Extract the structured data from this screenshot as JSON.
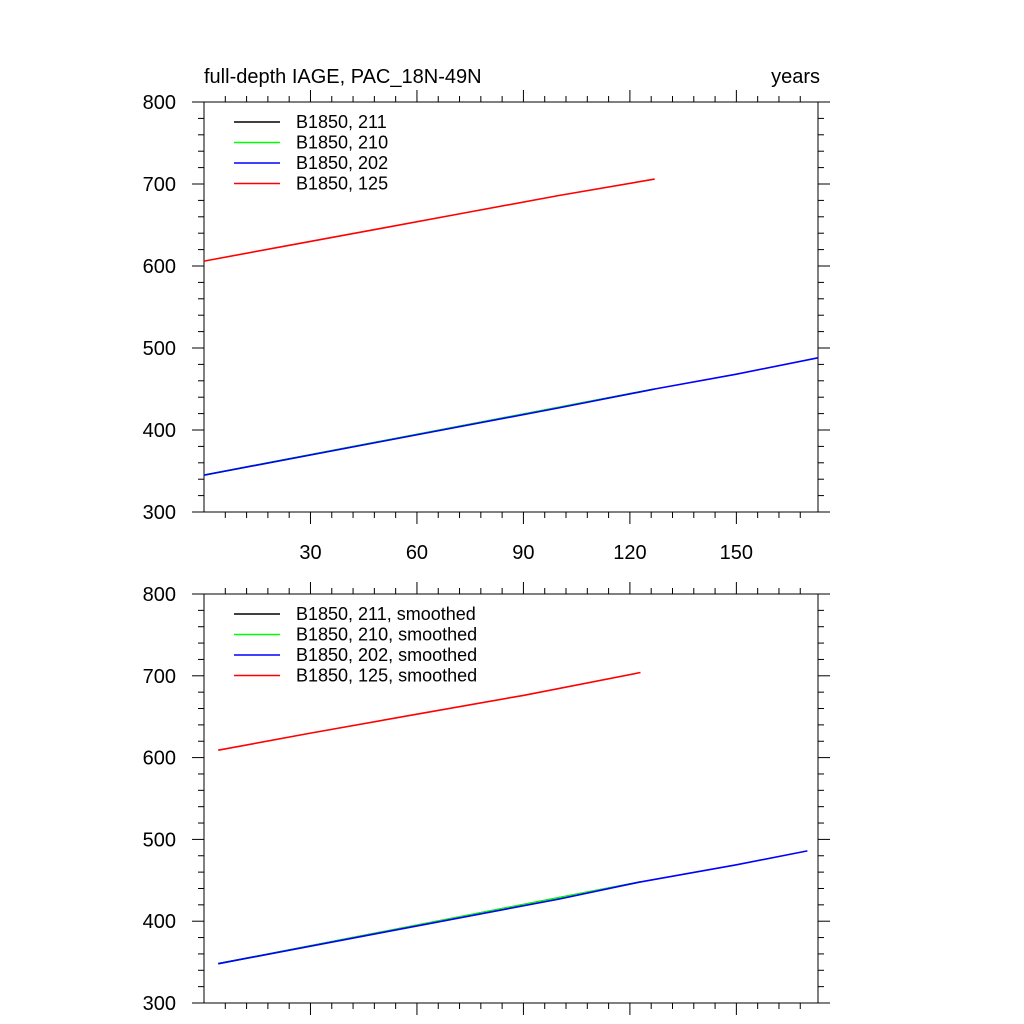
{
  "chart_data": [
    {
      "type": "line",
      "title_left": "full-depth IAGE, PAC_18N-49N",
      "title_right": "years",
      "xlabel": "",
      "ylabel": "",
      "xlim": [
        0,
        173
      ],
      "ylim": [
        300,
        800
      ],
      "x_ticks": [
        30,
        60,
        90,
        120,
        150
      ],
      "x_tick_labels": [
        "30",
        "60",
        "90",
        "120",
        "150"
      ],
      "y_ticks": [
        300,
        400,
        500,
        600,
        700,
        800
      ],
      "y_tick_labels": [
        "300",
        "400",
        "500",
        "600",
        "700",
        "800"
      ],
      "legend_position": "top-left",
      "series": [
        {
          "name": "B1850, 211",
          "color": "#000000",
          "x": [
            0,
            127
          ],
          "y": [
            345,
            450
          ]
        },
        {
          "name": "B1850, 210",
          "color": "#00ff00",
          "x": [
            0,
            127
          ],
          "y": [
            345,
            450
          ]
        },
        {
          "name": "B1850, 202",
          "color": "#0000ff",
          "x": [
            0,
            50,
            100,
            127,
            150,
            173
          ],
          "y": [
            345,
            386,
            427,
            450,
            468,
            488
          ]
        },
        {
          "name": "B1850, 125",
          "color": "#ff0000",
          "x": [
            0,
            25,
            50,
            75,
            100,
            127
          ],
          "y": [
            606,
            626,
            646,
            666,
            686,
            706
          ]
        }
      ]
    },
    {
      "type": "line",
      "title_left": "",
      "title_right": "",
      "xlabel": "",
      "ylabel": "",
      "xlim": [
        0,
        173
      ],
      "ylim": [
        300,
        800
      ],
      "x_ticks": [
        30,
        60,
        90,
        120,
        150
      ],
      "x_tick_labels": [],
      "y_ticks": [
        300,
        400,
        500,
        600,
        700,
        800
      ],
      "y_tick_labels": [
        "300",
        "400",
        "500",
        "600",
        "700",
        "800"
      ],
      "legend_position": "top-left",
      "series": [
        {
          "name": "B1850, 211, smoothed",
          "color": "#000000",
          "x": [
            4,
            123
          ],
          "y": [
            348,
            448
          ]
        },
        {
          "name": "B1850, 210, smoothed",
          "color": "#00ff00",
          "x": [
            4,
            123
          ],
          "y": [
            348,
            448
          ]
        },
        {
          "name": "B1850, 202, smoothed",
          "color": "#0000ff",
          "x": [
            4,
            50,
            100,
            123,
            150,
            170
          ],
          "y": [
            348,
            386,
            427,
            448,
            469,
            486
          ]
        },
        {
          "name": "B1850, 125, smoothed",
          "color": "#ff0000",
          "x": [
            4,
            30,
            60,
            90,
            123
          ],
          "y": [
            609,
            630,
            653,
            676,
            704
          ]
        }
      ]
    }
  ]
}
